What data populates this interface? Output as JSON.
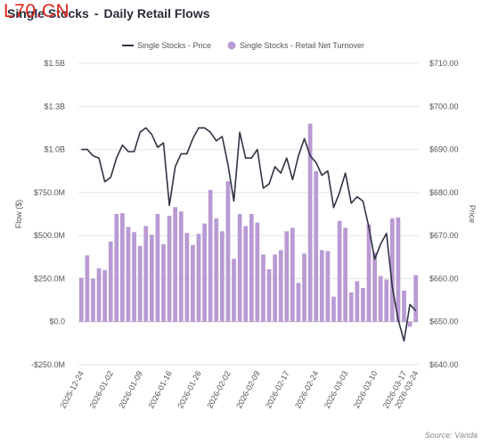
{
  "header": {
    "title_part1": "Single Stocks",
    "title_sep": "-",
    "title_part2": "Daily Retail Flows",
    "watermark": "L70.CN"
  },
  "footer": {
    "source": "Source: Vanda"
  },
  "colors": {
    "bar": "#b99ad4",
    "line": "#2f3342",
    "grid": "#e3e3e3",
    "axis_text": "#555555"
  },
  "chart_data": {
    "type": "bar",
    "title": "Single Stocks - Daily Retail Flows",
    "legend_position": "top-center",
    "ylabel_left": "Flow ($)",
    "ylabel_right": "Price",
    "left_axis": {
      "min": -250000000,
      "max": 1500000000,
      "ticks": [
        {
          "v": 1500000000,
          "label": "$1.5B"
        },
        {
          "v": 1250000000,
          "label": "$1.3B"
        },
        {
          "v": 1000000000,
          "label": "$1.0B"
        },
        {
          "v": 750000000,
          "label": "$750.0M"
        },
        {
          "v": 500000000,
          "label": "$500.0M"
        },
        {
          "v": 250000000,
          "label": "$250.0M"
        },
        {
          "v": 0,
          "label": "$0.0"
        },
        {
          "v": -250000000,
          "label": "-$250.0M"
        }
      ]
    },
    "right_axis": {
      "min": 640,
      "max": 710,
      "ticks": [
        {
          "v": 710,
          "label": "$710.00"
        },
        {
          "v": 700,
          "label": "$700.00"
        },
        {
          "v": 690,
          "label": "$690.00"
        },
        {
          "v": 680,
          "label": "$680.00"
        },
        {
          "v": 670,
          "label": "$670.00"
        },
        {
          "v": 660,
          "label": "$660.00"
        },
        {
          "v": 650,
          "label": "$650.00"
        },
        {
          "v": 640,
          "label": "$640.00"
        }
      ]
    },
    "x_tick_labels": [
      {
        "i": 0,
        "label": "2025-12-24"
      },
      {
        "i": 5,
        "label": "2026-01-02"
      },
      {
        "i": 10,
        "label": "2026-01-09"
      },
      {
        "i": 15,
        "label": "2026-01-16"
      },
      {
        "i": 20,
        "label": "2026-01-26"
      },
      {
        "i": 25,
        "label": "2026-02-02"
      },
      {
        "i": 30,
        "label": "2026-02-09"
      },
      {
        "i": 35,
        "label": "2026-02-17"
      },
      {
        "i": 40,
        "label": "2026-02-24"
      },
      {
        "i": 45,
        "label": "2026-03-03"
      },
      {
        "i": 50,
        "label": "2026-03-10"
      },
      {
        "i": 55,
        "label": "2026-03-17"
      },
      {
        "i": 60,
        "label": "2026-03-24"
      }
    ],
    "series": [
      {
        "name": "Single Stocks - Retail Net Turnover",
        "kind": "bar",
        "values": [
          255000000,
          385000000,
          250000000,
          310000000,
          300000000,
          465000000,
          625000000,
          630000000,
          550000000,
          520000000,
          440000000,
          555000000,
          505000000,
          625000000,
          450000000,
          615000000,
          665000000,
          640000000,
          515000000,
          445000000,
          510000000,
          570000000,
          765000000,
          600000000,
          525000000,
          815000000,
          365000000,
          625000000,
          555000000,
          625000000,
          575000000,
          390000000,
          305000000,
          390000000,
          415000000,
          525000000,
          545000000,
          225000000,
          395000000,
          1150000000,
          875000000,
          415000000,
          410000000,
          145000000,
          585000000,
          545000000,
          170000000,
          235000000,
          195000000,
          565000000,
          400000000,
          265000000,
          245000000,
          600000000,
          605000000,
          180000000,
          -30000000,
          270000000
        ]
      },
      {
        "name": "Single Stocks - Price",
        "kind": "line",
        "values": [
          690.0,
          690.0,
          688.5,
          688.0,
          682.5,
          683.5,
          688.0,
          691.0,
          689.5,
          689.5,
          694.0,
          695.0,
          693.5,
          690.5,
          691.5,
          677.0,
          686.0,
          689.0,
          689.0,
          692.5,
          695.0,
          695.0,
          694.0,
          692.0,
          693.0,
          686.5,
          678.0,
          694.0,
          688.0,
          688.0,
          690.0,
          681.0,
          682.0,
          686.0,
          684.5,
          688.0,
          683.0,
          688.5,
          692.5,
          688.5,
          687.0,
          684.0,
          685.0,
          676.5,
          680.0,
          684.5,
          677.5,
          679.0,
          678.0,
          672.0,
          664.5,
          668.0,
          670.5,
          658.0,
          650.5,
          645.5,
          654.0,
          652.5
        ]
      }
    ]
  }
}
